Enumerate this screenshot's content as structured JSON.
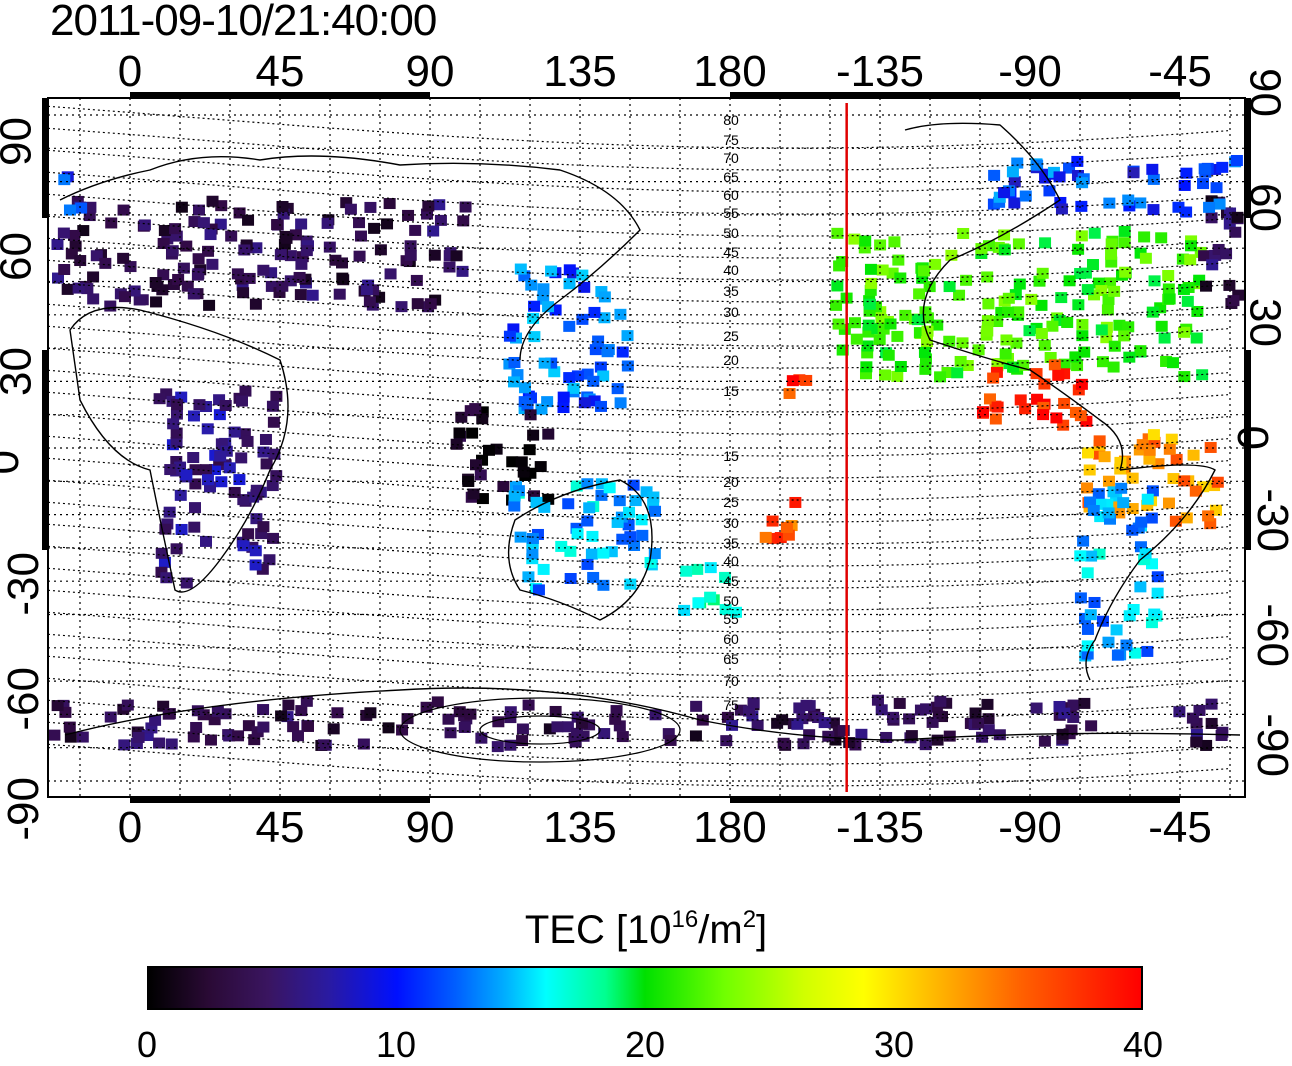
{
  "timestamp": "2011-09-10/21:40:00",
  "map": {
    "x_ticks": [
      "0",
      "45",
      "90",
      "135",
      "180",
      "-135",
      "-90",
      "-45"
    ],
    "y_ticks": [
      "90",
      "60",
      "30",
      "0",
      "-30",
      "-60",
      "-90"
    ],
    "contour_labels": [
      "80",
      "75",
      "70",
      "65",
      "60",
      "55",
      "50",
      "45",
      "40",
      "35",
      "30",
      "25",
      "20",
      "15",
      "15",
      "20",
      "25",
      "30",
      "35",
      "40",
      "45",
      "50",
      "55",
      "60",
      "65",
      "70",
      "75"
    ],
    "terminator_longitude": -145
  },
  "colorbar": {
    "title_prefix": "TEC  [10",
    "title_exp1": "16",
    "title_mid": "/m",
    "title_exp2": "2",
    "title_suffix": "]",
    "ticks": [
      "0",
      "10",
      "20",
      "30",
      "40"
    ],
    "range": [
      0,
      40
    ],
    "colormap": "jet-like (black-purple-blue-cyan-green-yellow-red)"
  },
  "tec_regions": [
    {
      "name": "north-america",
      "lon": -95,
      "lat": 45,
      "value": 22
    },
    {
      "name": "central-america",
      "lon": -90,
      "lat": 18,
      "value": 38
    },
    {
      "name": "south-america-north",
      "lon": -55,
      "lat": -8,
      "value": 34
    },
    {
      "name": "south-america-south",
      "lon": -65,
      "lat": -35,
      "value": 14
    },
    {
      "name": "europe-siberia",
      "lon": 30,
      "lat": 60,
      "value": 4
    },
    {
      "name": "east-asia",
      "lon": 130,
      "lat": 35,
      "value": 12
    },
    {
      "name": "se-asia",
      "lon": 110,
      "lat": 0,
      "value": 1
    },
    {
      "name": "australia",
      "lon": 135,
      "lat": -25,
      "value": 14
    },
    {
      "name": "new-zealand",
      "lon": 172,
      "lat": -42,
      "value": 16
    },
    {
      "name": "africa",
      "lon": 25,
      "lat": -10,
      "value": 6
    },
    {
      "name": "antarctica",
      "lon": 120,
      "lat": -82,
      "value": 4
    },
    {
      "name": "arctic-east",
      "lon": -60,
      "lat": 80,
      "value": 11
    },
    {
      "name": "pacific-north",
      "lon": -160,
      "lat": 22,
      "value": 38
    },
    {
      "name": "pacific-south",
      "lon": -170,
      "lat": -20,
      "value": 36
    }
  ]
}
